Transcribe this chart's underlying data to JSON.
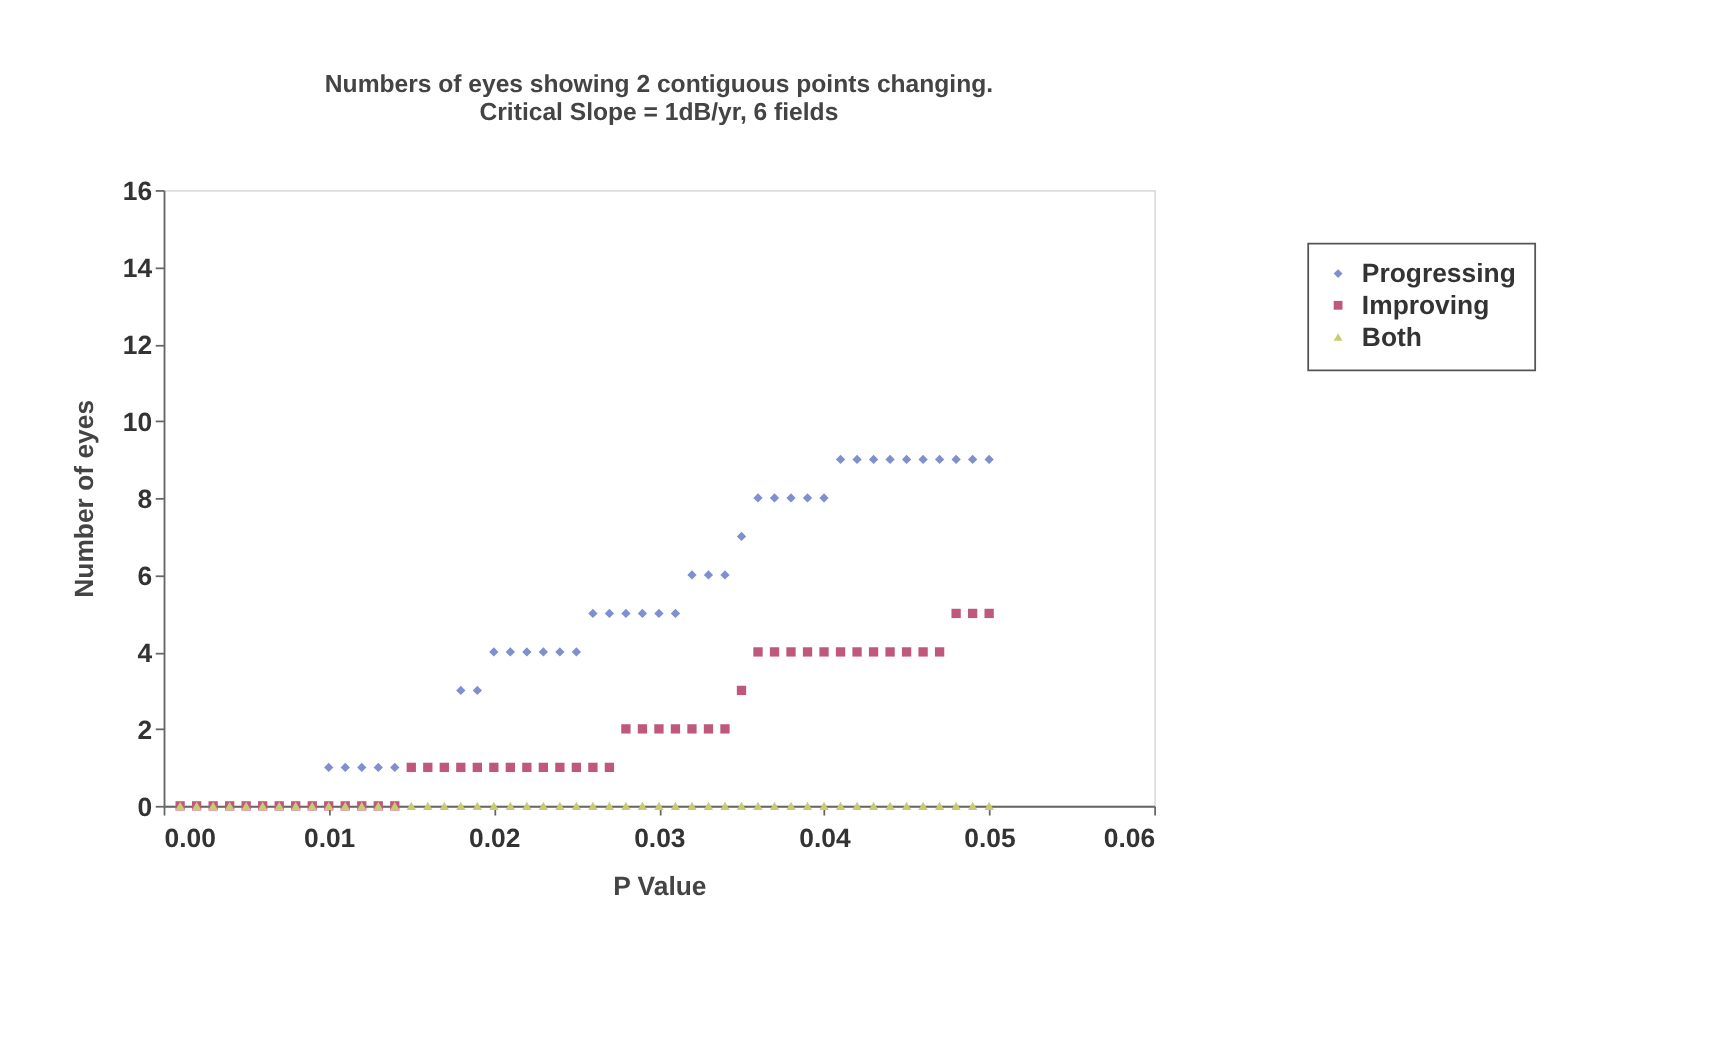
{
  "chart_data": {
    "type": "scatter",
    "title": [
      "Numbers of eyes showing 2 contiguous points changing.",
      "Critical Slope = 1dB/yr, 6 fields"
    ],
    "xlabel": "P Value",
    "ylabel": "Number of eyes",
    "x": [
      0.001,
      0.002,
      0.003,
      0.004,
      0.005,
      0.006,
      0.007,
      0.008,
      0.009,
      0.01,
      0.011,
      0.012,
      0.013,
      0.014,
      0.015,
      0.016,
      0.017,
      0.018,
      0.019,
      0.02,
      0.021,
      0.022,
      0.023,
      0.024,
      0.025,
      0.026,
      0.027,
      0.028,
      0.029,
      0.03,
      0.031,
      0.032,
      0.033,
      0.034,
      0.035,
      0.036,
      0.037,
      0.038,
      0.039,
      0.04,
      0.041,
      0.042,
      0.043,
      0.044,
      0.045,
      0.046,
      0.047,
      0.048,
      0.049,
      0.05
    ],
    "series": [
      {
        "name": "Progressing",
        "color": "#7f8fd0",
        "marker": "diamond",
        "values": [
          null,
          null,
          null,
          null,
          null,
          null,
          null,
          null,
          0,
          1,
          1,
          1,
          1,
          1,
          null,
          null,
          null,
          3,
          3,
          4,
          4,
          4,
          4,
          4,
          4,
          5,
          5,
          5,
          5,
          5,
          5,
          6,
          6,
          6,
          7,
          8,
          8,
          8,
          8,
          8,
          9,
          9,
          9,
          9,
          9,
          9,
          9,
          9,
          9,
          9
        ]
      },
      {
        "name": "Improving",
        "color": "#c0587a",
        "marker": "square",
        "values": [
          0,
          0,
          0,
          0,
          0,
          0,
          0,
          0,
          0,
          0,
          0,
          0,
          0,
          0,
          1,
          1,
          1,
          1,
          1,
          1,
          1,
          1,
          1,
          1,
          1,
          1,
          1,
          2,
          2,
          2,
          2,
          2,
          2,
          2,
          3,
          4,
          4,
          4,
          4,
          4,
          4,
          4,
          4,
          4,
          4,
          4,
          4,
          5,
          5,
          5
        ]
      },
      {
        "name": "Both",
        "color": "#c8cc70",
        "marker": "triangle",
        "values": [
          0,
          0,
          0,
          0,
          0,
          0,
          0,
          0,
          0,
          0,
          0,
          0,
          0,
          0,
          0,
          0,
          0,
          0,
          0,
          0,
          0,
          0,
          0,
          0,
          0,
          0,
          0,
          0,
          0,
          0,
          0,
          0,
          0,
          0,
          0,
          0,
          0,
          0,
          0,
          0,
          0,
          0,
          0,
          0,
          0,
          0,
          0,
          0,
          0,
          0
        ]
      }
    ],
    "xlim": [
      0,
      0.06
    ],
    "xticks": [
      {
        "value": 0,
        "label": "0.00"
      },
      {
        "value": 0.01,
        "label": "0.01"
      },
      {
        "value": 0.02,
        "label": "0.02"
      },
      {
        "value": 0.03,
        "label": "0.03"
      },
      {
        "value": 0.04,
        "label": "0.04"
      },
      {
        "value": 0.05,
        "label": "0.05"
      },
      {
        "value": 0.06,
        "label": "0.06"
      }
    ],
    "ylim": [
      0,
      16
    ],
    "yticks": [
      0,
      2,
      4,
      6,
      8,
      10,
      12,
      14,
      16
    ],
    "grid": false,
    "legend": "top right"
  }
}
